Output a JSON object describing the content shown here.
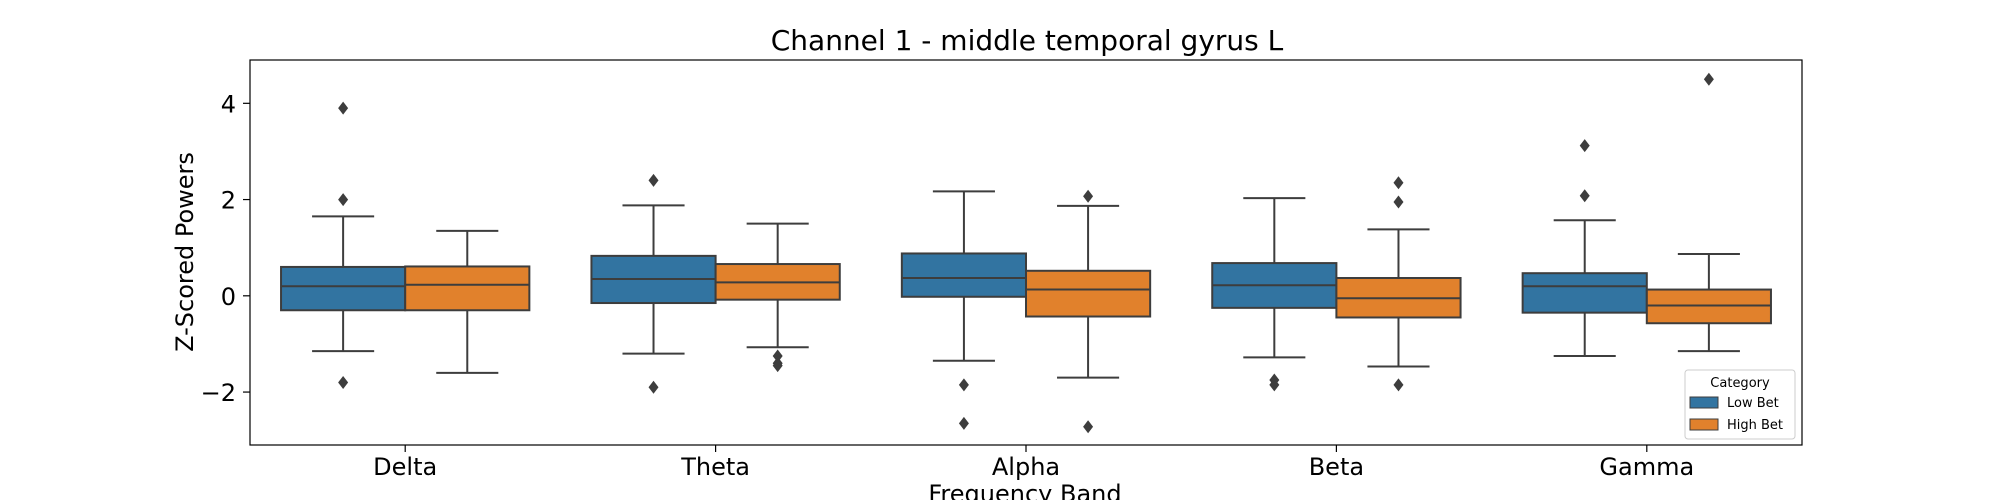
{
  "chart_data": {
    "type": "box",
    "title": "Channel 1 - middle temporal gyrus L",
    "xlabel": "Frequency Band",
    "ylabel": "Z-Scored Powers",
    "categories": [
      "Delta",
      "Theta",
      "Alpha",
      "Beta",
      "Gamma"
    ],
    "ylim": [
      -3.1,
      4.9
    ],
    "yticks": [
      -2,
      0,
      2,
      4
    ],
    "ytick_labels": [
      "−2",
      "0",
      "2",
      "4"
    ],
    "grid": false,
    "legend": {
      "title": "Category",
      "placement": "bottom-right"
    },
    "series": [
      {
        "name": "Low Bet",
        "color": "#3274a1",
        "boxes": [
          {
            "whisker_low": -1.15,
            "q1": -0.3,
            "median": 0.2,
            "q3": 0.6,
            "whisker_high": 1.65,
            "outliers": [
              3.9,
              2.0,
              -1.8
            ]
          },
          {
            "whisker_low": -1.2,
            "q1": -0.15,
            "median": 0.35,
            "q3": 0.83,
            "whisker_high": 1.88,
            "outliers": [
              2.4,
              -1.9
            ]
          },
          {
            "whisker_low": -1.35,
            "q1": -0.02,
            "median": 0.37,
            "q3": 0.88,
            "whisker_high": 2.17,
            "outliers": [
              -1.85,
              -2.65
            ]
          },
          {
            "whisker_low": -1.28,
            "q1": -0.25,
            "median": 0.22,
            "q3": 0.68,
            "whisker_high": 2.03,
            "outliers": [
              -1.75,
              -1.85
            ]
          },
          {
            "whisker_low": -1.25,
            "q1": -0.35,
            "median": 0.2,
            "q3": 0.47,
            "whisker_high": 1.57,
            "outliers": [
              3.12,
              2.08
            ]
          }
        ]
      },
      {
        "name": "High Bet",
        "color": "#e1812c",
        "boxes": [
          {
            "whisker_low": -1.6,
            "q1": -0.3,
            "median": 0.23,
            "q3": 0.61,
            "whisker_high": 1.35,
            "outliers": []
          },
          {
            "whisker_low": -1.07,
            "q1": -0.08,
            "median": 0.28,
            "q3": 0.66,
            "whisker_high": 1.5,
            "outliers": [
              -1.25,
              -1.4,
              -1.45
            ]
          },
          {
            "whisker_low": -1.7,
            "q1": -0.43,
            "median": 0.13,
            "q3": 0.52,
            "whisker_high": 1.87,
            "outliers": [
              2.07,
              -2.72
            ]
          },
          {
            "whisker_low": -1.47,
            "q1": -0.45,
            "median": -0.05,
            "q3": 0.37,
            "whisker_high": 1.38,
            "outliers": [
              2.35,
              1.95,
              -1.85
            ]
          },
          {
            "whisker_low": -1.15,
            "q1": -0.57,
            "median": -0.2,
            "q3": 0.13,
            "whisker_high": 0.87,
            "outliers": [
              4.5
            ]
          }
        ]
      }
    ]
  }
}
